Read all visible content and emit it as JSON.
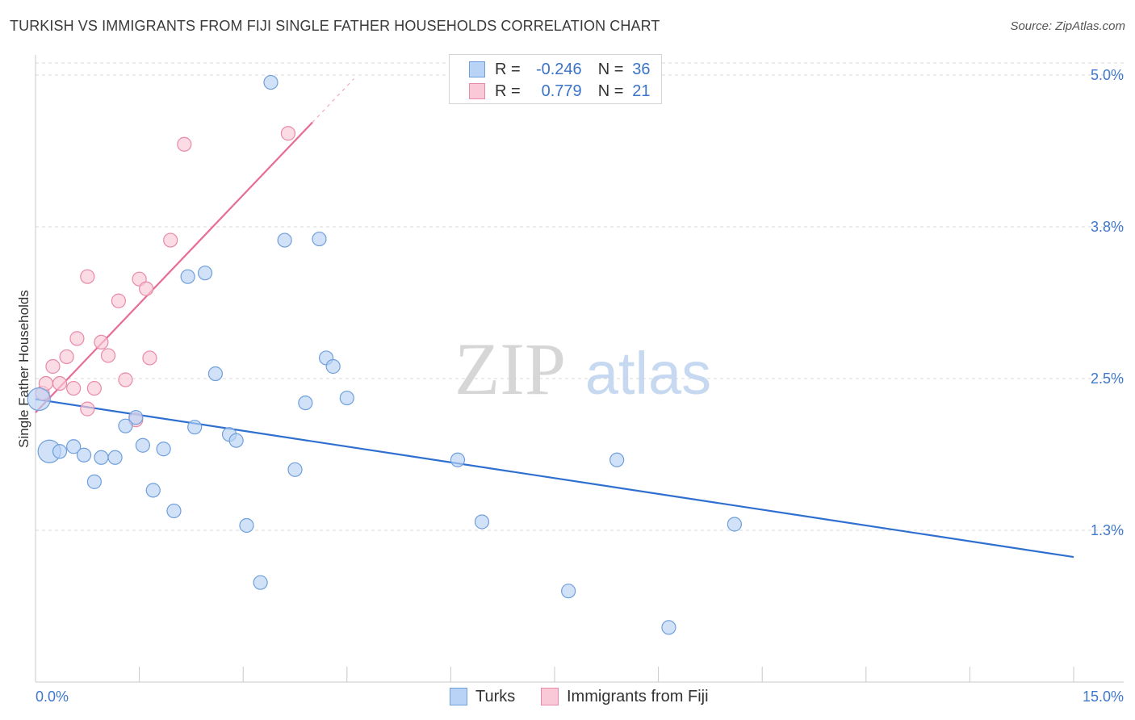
{
  "title": "TURKISH VS IMMIGRANTS FROM FIJI SINGLE FATHER HOUSEHOLDS CORRELATION CHART",
  "source": "Source: ZipAtlas.com",
  "watermark": {
    "zip": "ZIP",
    "atlas": "atlas"
  },
  "legend": {
    "turks": {
      "r_label": "R =",
      "r_value": "-0.246",
      "n_label": "N =",
      "n_value": "36"
    },
    "fiji": {
      "r_label": "R =",
      "r_value": "0.779",
      "n_label": "N =",
      "n_value": "21"
    }
  },
  "colors": {
    "turks_fill": "#b8d3f5",
    "turks_stroke": "#6f9fdc",
    "turks_line": "#2f6fd0",
    "fiji_fill": "#f9c9d7",
    "fiji_stroke": "#e889a8",
    "fiji_line": "#e76c96",
    "tick_label": "#3f78cc",
    "grid": "#d9d9d9"
  },
  "chart_data": {
    "type": "scatter",
    "title": "TURKISH VS IMMIGRANTS FROM FIJI SINGLE FATHER HOUSEHOLDS CORRELATION CHART",
    "xlabel": "",
    "ylabel": "Single Father Households",
    "xlim": [
      0,
      15
    ],
    "ylim": [
      0.0,
      5.1
    ],
    "x_tick_labels": [
      {
        "value": 0,
        "label": "0.0%"
      },
      {
        "value": 15,
        "label": "15.0%"
      }
    ],
    "y_ticks": [
      {
        "value": 1.25,
        "label": "1.3%"
      },
      {
        "value": 2.5,
        "label": "2.5%"
      },
      {
        "value": 3.75,
        "label": "3.8%"
      },
      {
        "value": 5.0,
        "label": "5.0%"
      }
    ],
    "x_minor_ticks": [
      1.5,
      3.0,
      4.5,
      6.0,
      7.5,
      9.0,
      10.5,
      12.0,
      13.5,
      15.0
    ],
    "series": [
      {
        "name": "Turks",
        "r": -0.246,
        "n": 36,
        "trend": {
          "x0": 0.0,
          "y0": 2.33,
          "x1": 15.0,
          "y1": 1.03
        },
        "points": [
          {
            "x": 0.05,
            "y": 2.33,
            "big": true
          },
          {
            "x": 3.4,
            "y": 4.94
          },
          {
            "x": 3.6,
            "y": 3.64
          },
          {
            "x": 4.1,
            "y": 3.65
          },
          {
            "x": 2.2,
            "y": 3.34
          },
          {
            "x": 2.45,
            "y": 3.37
          },
          {
            "x": 2.6,
            "y": 2.54
          },
          {
            "x": 4.2,
            "y": 2.67
          },
          {
            "x": 4.3,
            "y": 2.6
          },
          {
            "x": 3.9,
            "y": 2.3
          },
          {
            "x": 4.5,
            "y": 2.34
          },
          {
            "x": 1.45,
            "y": 2.18
          },
          {
            "x": 1.3,
            "y": 2.11
          },
          {
            "x": 2.3,
            "y": 2.1
          },
          {
            "x": 2.8,
            "y": 2.04
          },
          {
            "x": 2.9,
            "y": 1.99
          },
          {
            "x": 0.2,
            "y": 1.9,
            "big": true
          },
          {
            "x": 0.35,
            "y": 1.9
          },
          {
            "x": 0.55,
            "y": 1.94
          },
          {
            "x": 0.7,
            "y": 1.87
          },
          {
            "x": 0.95,
            "y": 1.85
          },
          {
            "x": 1.15,
            "y": 1.85
          },
          {
            "x": 1.55,
            "y": 1.95
          },
          {
            "x": 1.85,
            "y": 1.92
          },
          {
            "x": 0.85,
            "y": 1.65
          },
          {
            "x": 1.7,
            "y": 1.58
          },
          {
            "x": 2.0,
            "y": 1.41
          },
          {
            "x": 3.75,
            "y": 1.75
          },
          {
            "x": 6.1,
            "y": 1.83
          },
          {
            "x": 8.4,
            "y": 1.83
          },
          {
            "x": 3.05,
            "y": 1.29
          },
          {
            "x": 6.45,
            "y": 1.32
          },
          {
            "x": 10.1,
            "y": 1.3
          },
          {
            "x": 3.25,
            "y": 0.82
          },
          {
            "x": 7.7,
            "y": 0.75
          },
          {
            "x": 9.15,
            "y": 0.45
          }
        ]
      },
      {
        "name": "Immigrants from Fiji",
        "r": 0.779,
        "n": 21,
        "trend": {
          "x0": 0.0,
          "y0": 2.22,
          "x1": 4.0,
          "y1": 4.61
        },
        "trend_dashed": {
          "x0": 4.0,
          "y0": 4.61,
          "x1": 4.6,
          "y1": 4.97
        },
        "points": [
          {
            "x": 0.1,
            "y": 2.38
          },
          {
            "x": 0.15,
            "y": 2.46
          },
          {
            "x": 0.25,
            "y": 2.6
          },
          {
            "x": 0.35,
            "y": 2.46
          },
          {
            "x": 0.45,
            "y": 2.68
          },
          {
            "x": 0.55,
            "y": 2.42
          },
          {
            "x": 0.6,
            "y": 2.83
          },
          {
            "x": 0.75,
            "y": 2.25
          },
          {
            "x": 0.85,
            "y": 2.42
          },
          {
            "x": 0.95,
            "y": 2.8
          },
          {
            "x": 1.05,
            "y": 2.69
          },
          {
            "x": 1.2,
            "y": 3.14
          },
          {
            "x": 1.3,
            "y": 2.49
          },
          {
            "x": 1.45,
            "y": 2.16
          },
          {
            "x": 1.5,
            "y": 3.32
          },
          {
            "x": 1.6,
            "y": 3.24
          },
          {
            "x": 1.65,
            "y": 2.67
          },
          {
            "x": 0.75,
            "y": 3.34
          },
          {
            "x": 1.95,
            "y": 3.64
          },
          {
            "x": 2.15,
            "y": 4.43
          },
          {
            "x": 3.65,
            "y": 4.52
          }
        ]
      }
    ]
  },
  "bottom_legend": {
    "turks": "Turks",
    "fiji": "Immigrants from Fiji"
  }
}
